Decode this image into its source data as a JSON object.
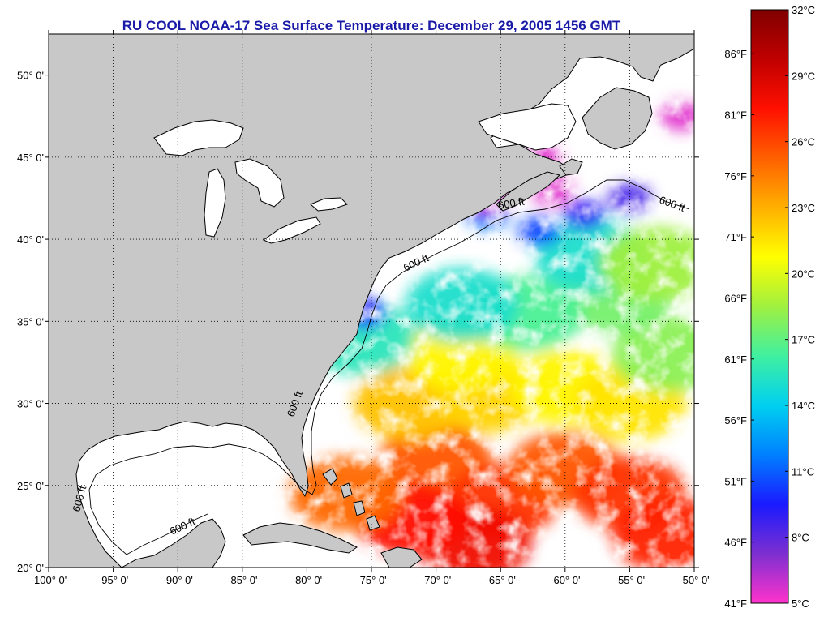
{
  "title": "RU COOL  NOAA-17  Sea Surface Temperature:  December 29, 2005 1456 GMT",
  "map": {
    "lon_range": [
      -100,
      -50
    ],
    "lat_range": [
      20,
      52.5
    ],
    "lon_ticks": [
      {
        "value": -100,
        "label": "-100° 0'"
      },
      {
        "value": -95,
        "label": "-95° 0'"
      },
      {
        "value": -90,
        "label": "-90° 0'"
      },
      {
        "value": -85,
        "label": "-85° 0'"
      },
      {
        "value": -80,
        "label": "-80° 0'"
      },
      {
        "value": -75,
        "label": "-75° 0'"
      },
      {
        "value": -70,
        "label": "-70° 0'"
      },
      {
        "value": -65,
        "label": "-65° 0'"
      },
      {
        "value": -60,
        "label": "-60° 0'"
      },
      {
        "value": -55,
        "label": "-55° 0'"
      },
      {
        "value": -50,
        "label": "-50° 0'"
      }
    ],
    "lat_ticks": [
      {
        "value": 20,
        "label": "20° 0'"
      },
      {
        "value": 25,
        "label": "25° 0'"
      },
      {
        "value": 30,
        "label": "30° 0'"
      },
      {
        "value": 35,
        "label": "35° 0'"
      },
      {
        "value": 40,
        "label": "40° 0'"
      },
      {
        "value": 45,
        "label": "45° 0'"
      },
      {
        "value": 50,
        "label": "50° 0'"
      }
    ],
    "contour_label": "600 ft",
    "land_color": "#c8c8c8",
    "ocean_color": "#ffffff"
  },
  "colorbar": {
    "celsius_ticks": [
      {
        "value": 32,
        "label": "32°C"
      },
      {
        "value": 29,
        "label": "29°C"
      },
      {
        "value": 26,
        "label": "26°C"
      },
      {
        "value": 23,
        "label": "23°C"
      },
      {
        "value": 20,
        "label": "20°C"
      },
      {
        "value": 17,
        "label": "17°C"
      },
      {
        "value": 14,
        "label": "14°C"
      },
      {
        "value": 11,
        "label": "11°C"
      },
      {
        "value": 8,
        "label": "8°C"
      },
      {
        "value": 5,
        "label": "5°C"
      }
    ],
    "fahrenheit_ticks": [
      {
        "value": 86,
        "label": "86°F"
      },
      {
        "value": 81,
        "label": "81°F"
      },
      {
        "value": 76,
        "label": "76°F"
      },
      {
        "value": 71,
        "label": "71°F"
      },
      {
        "value": 66,
        "label": "66°F"
      },
      {
        "value": 61,
        "label": "61°F"
      },
      {
        "value": 56,
        "label": "56°F"
      },
      {
        "value": 51,
        "label": "51°F"
      },
      {
        "value": 46,
        "label": "46°F"
      },
      {
        "value": 41,
        "label": "41°F"
      }
    ],
    "range_c": [
      5,
      32
    ],
    "colors": [
      "#ff33cc",
      "#7d2fd0",
      "#1a1aff",
      "#0080ff",
      "#00d0f0",
      "#40f0a0",
      "#a0f040",
      "#ffff00",
      "#ffb000",
      "#ff6000",
      "#ff1000",
      "#c00000",
      "#800000"
    ]
  },
  "sst_patches": [
    {
      "lon": -70.0,
      "lat": 26.5,
      "temp_c": 25.5
    },
    {
      "lon": -65.0,
      "lat": 24.0,
      "temp_c": 26.5
    },
    {
      "lon": -60.0,
      "lat": 26.0,
      "temp_c": 25.5
    },
    {
      "lon": -55.0,
      "lat": 24.5,
      "temp_c": 26.5
    },
    {
      "lon": -52.0,
      "lat": 22.0,
      "temp_c": 27.0
    },
    {
      "lon": -67.0,
      "lat": 21.5,
      "temp_c": 28.0
    },
    {
      "lon": -72.0,
      "lat": 23.0,
      "temp_c": 27.5
    },
    {
      "lon": -77.0,
      "lat": 24.5,
      "temp_c": 25.0
    },
    {
      "lon": -72.0,
      "lat": 30.0,
      "temp_c": 22.5
    },
    {
      "lon": -66.0,
      "lat": 30.5,
      "temp_c": 22.0
    },
    {
      "lon": -60.0,
      "lat": 31.0,
      "temp_c": 21.0
    },
    {
      "lon": -55.0,
      "lat": 30.0,
      "temp_c": 21.5
    },
    {
      "lon": -68.0,
      "lat": 33.0,
      "temp_c": 21.0
    },
    {
      "lon": -52.0,
      "lat": 33.0,
      "temp_c": 18.0
    },
    {
      "lon": -56.0,
      "lat": 36.5,
      "temp_c": 17.5
    },
    {
      "lon": -63.0,
      "lat": 35.5,
      "temp_c": 16.5
    },
    {
      "lon": -68.0,
      "lat": 36.0,
      "temp_c": 15.0
    },
    {
      "lon": -58.0,
      "lat": 39.0,
      "temp_c": 15.0
    },
    {
      "lon": -53.0,
      "lat": 38.5,
      "temp_c": 18.5
    },
    {
      "lon": -62.0,
      "lat": 40.5,
      "temp_c": 10.5
    },
    {
      "lon": -58.5,
      "lat": 41.5,
      "temp_c": 9.0
    },
    {
      "lon": -55.0,
      "lat": 42.5,
      "temp_c": 8.5
    },
    {
      "lon": -66.0,
      "lat": 41.5,
      "temp_c": 11.5
    },
    {
      "lon": -76.0,
      "lat": 34.0,
      "temp_c": 15.5
    },
    {
      "lon": -75.5,
      "lat": 35.5,
      "temp_c": 9.5
    },
    {
      "lon": -66.0,
      "lat": 42.5,
      "temp_c": 5.5
    },
    {
      "lon": -62.0,
      "lat": 45.0,
      "temp_c": 5.5
    },
    {
      "lon": -61.0,
      "lat": 43.0,
      "temp_c": 5.5
    },
    {
      "lon": -51.0,
      "lat": 47.5,
      "temp_c": 5.5
    }
  ]
}
